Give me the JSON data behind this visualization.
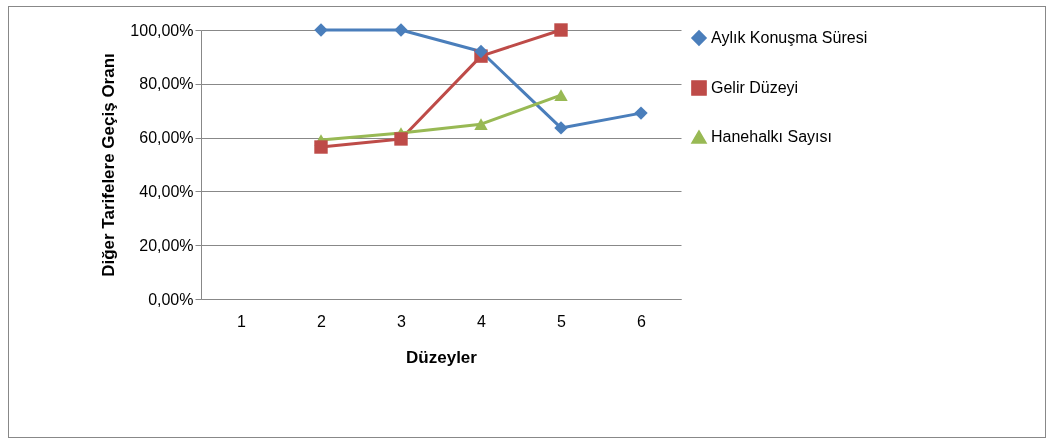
{
  "chart_data": {
    "type": "line",
    "xlabel": "Düzeyler",
    "ylabel": "Diğer Tarifelere Geçiş Oranı",
    "categories": [
      "1",
      "2",
      "3",
      "4",
      "5",
      "6"
    ],
    "series": [
      {
        "name": "Aylık Konuşma Süresi",
        "color": "#4a7ebb",
        "marker": "diamond",
        "values": [
          null,
          100,
          100,
          92,
          63.6,
          69.1
        ]
      },
      {
        "name": "Gelir Düzeyi",
        "color": "#be4b48",
        "marker": "square",
        "values": [
          null,
          56.5,
          59.5,
          90.3,
          100,
          null
        ]
      },
      {
        "name": "Hanehalkı Sayısı",
        "color": "#98b954",
        "marker": "triangle",
        "values": [
          null,
          59.1,
          61.7,
          65,
          75.8,
          null
        ]
      }
    ],
    "ylim": [
      0,
      100
    ],
    "yticks": [
      {
        "value": 0,
        "label": "0,00%"
      },
      {
        "value": 20,
        "label": "20,00%"
      },
      {
        "value": 40,
        "label": "40,00%"
      },
      {
        "value": 60,
        "label": "60,00%"
      },
      {
        "value": 80,
        "label": "80,00%"
      },
      {
        "value": 100,
        "label": "100,00%"
      }
    ],
    "grid": "y",
    "legend": "right",
    "line_style": "solid"
  }
}
